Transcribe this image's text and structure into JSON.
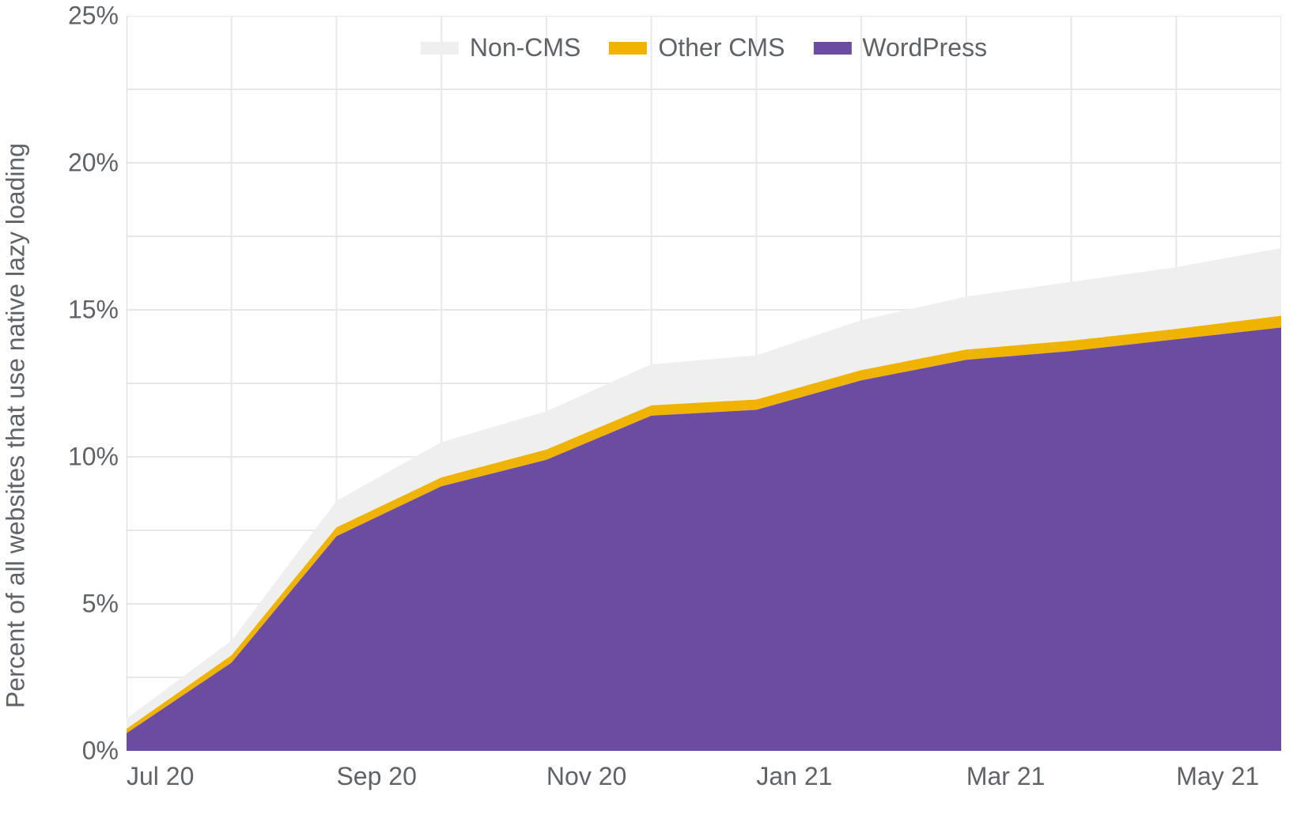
{
  "chart": {
    "type": "area-stacked",
    "y_axis_title": "Percent of all websites that use native lazy loading",
    "background_color": "#ffffff",
    "grid_color": "#e8e8e8",
    "axis_color": "#dadada",
    "label_color": "#5f6368",
    "label_fontsize": 32,
    "ylim": [
      0,
      25
    ],
    "ytick_step": 5,
    "y_tick_labels": [
      "0%",
      "5%",
      "10%",
      "15%",
      "20%",
      "25%"
    ],
    "x_categories": [
      "Jul 20",
      "Aug 20",
      "Sep 20",
      "Oct 20",
      "Nov 20",
      "Dec 20",
      "Jan 21",
      "Feb 21",
      "Mar 21",
      "Apr 21",
      "May 21",
      "Jun 21"
    ],
    "x_tick_show_every": 2,
    "legend": {
      "items": [
        {
          "label": "Non-CMS",
          "color": "#efefef"
        },
        {
          "label": "Other CMS",
          "color": "#f0b400"
        },
        {
          "label": "WordPress",
          "color": "#6b4ca0"
        }
      ]
    },
    "series": [
      {
        "name": "WordPress",
        "color": "#6b4ca0",
        "values": [
          0.6,
          3.0,
          7.3,
          9.0,
          9.9,
          11.4,
          11.6,
          12.6,
          13.3,
          13.6,
          14.0,
          14.4
        ]
      },
      {
        "name": "Other CMS",
        "color": "#f0b400",
        "values": [
          0.15,
          0.25,
          0.3,
          0.3,
          0.35,
          0.35,
          0.35,
          0.35,
          0.35,
          0.35,
          0.35,
          0.4
        ]
      },
      {
        "name": "Non-CMS",
        "color": "#efefef",
        "values": [
          0.35,
          0.5,
          0.9,
          1.2,
          1.3,
          1.4,
          1.5,
          1.7,
          1.8,
          2.0,
          2.1,
          2.3
        ]
      }
    ]
  }
}
